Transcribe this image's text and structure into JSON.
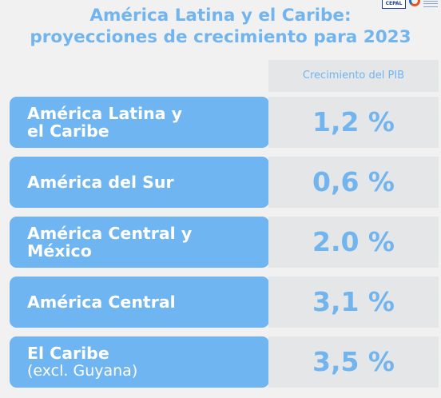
{
  "logos": {
    "cepal_text": "CEPAL"
  },
  "chart_data": {
    "type": "table",
    "title_line1": "América Latina y el Caribe:",
    "title_line2": "proyecciones de crecimiento para 2023",
    "column_header": "Crecimiento del PIB",
    "rows": [
      {
        "label_line1": "América Latina y",
        "label_line2": "el Caribe",
        "value": 1.2,
        "value_text": "1,2 %"
      },
      {
        "label_line1": "América del Sur",
        "label_line2": "",
        "value": 0.6,
        "value_text": "0,6 %"
      },
      {
        "label_line1": "América Central y",
        "label_line2": "México",
        "value": 2.0,
        "value_text": "2.0 %"
      },
      {
        "label_line1": "América Central",
        "label_line2": "",
        "value": 3.1,
        "value_text": "3,1 %"
      },
      {
        "label_line1": "El Caribe",
        "label_line2": "(excl. Guyana)",
        "value": 3.5,
        "value_text": "3,5 %"
      }
    ]
  },
  "colors": {
    "accent": "#6eb5f2",
    "title": "#72b5ee",
    "cell_bg": "#e5e6e8",
    "background": "#f1f1f1"
  }
}
